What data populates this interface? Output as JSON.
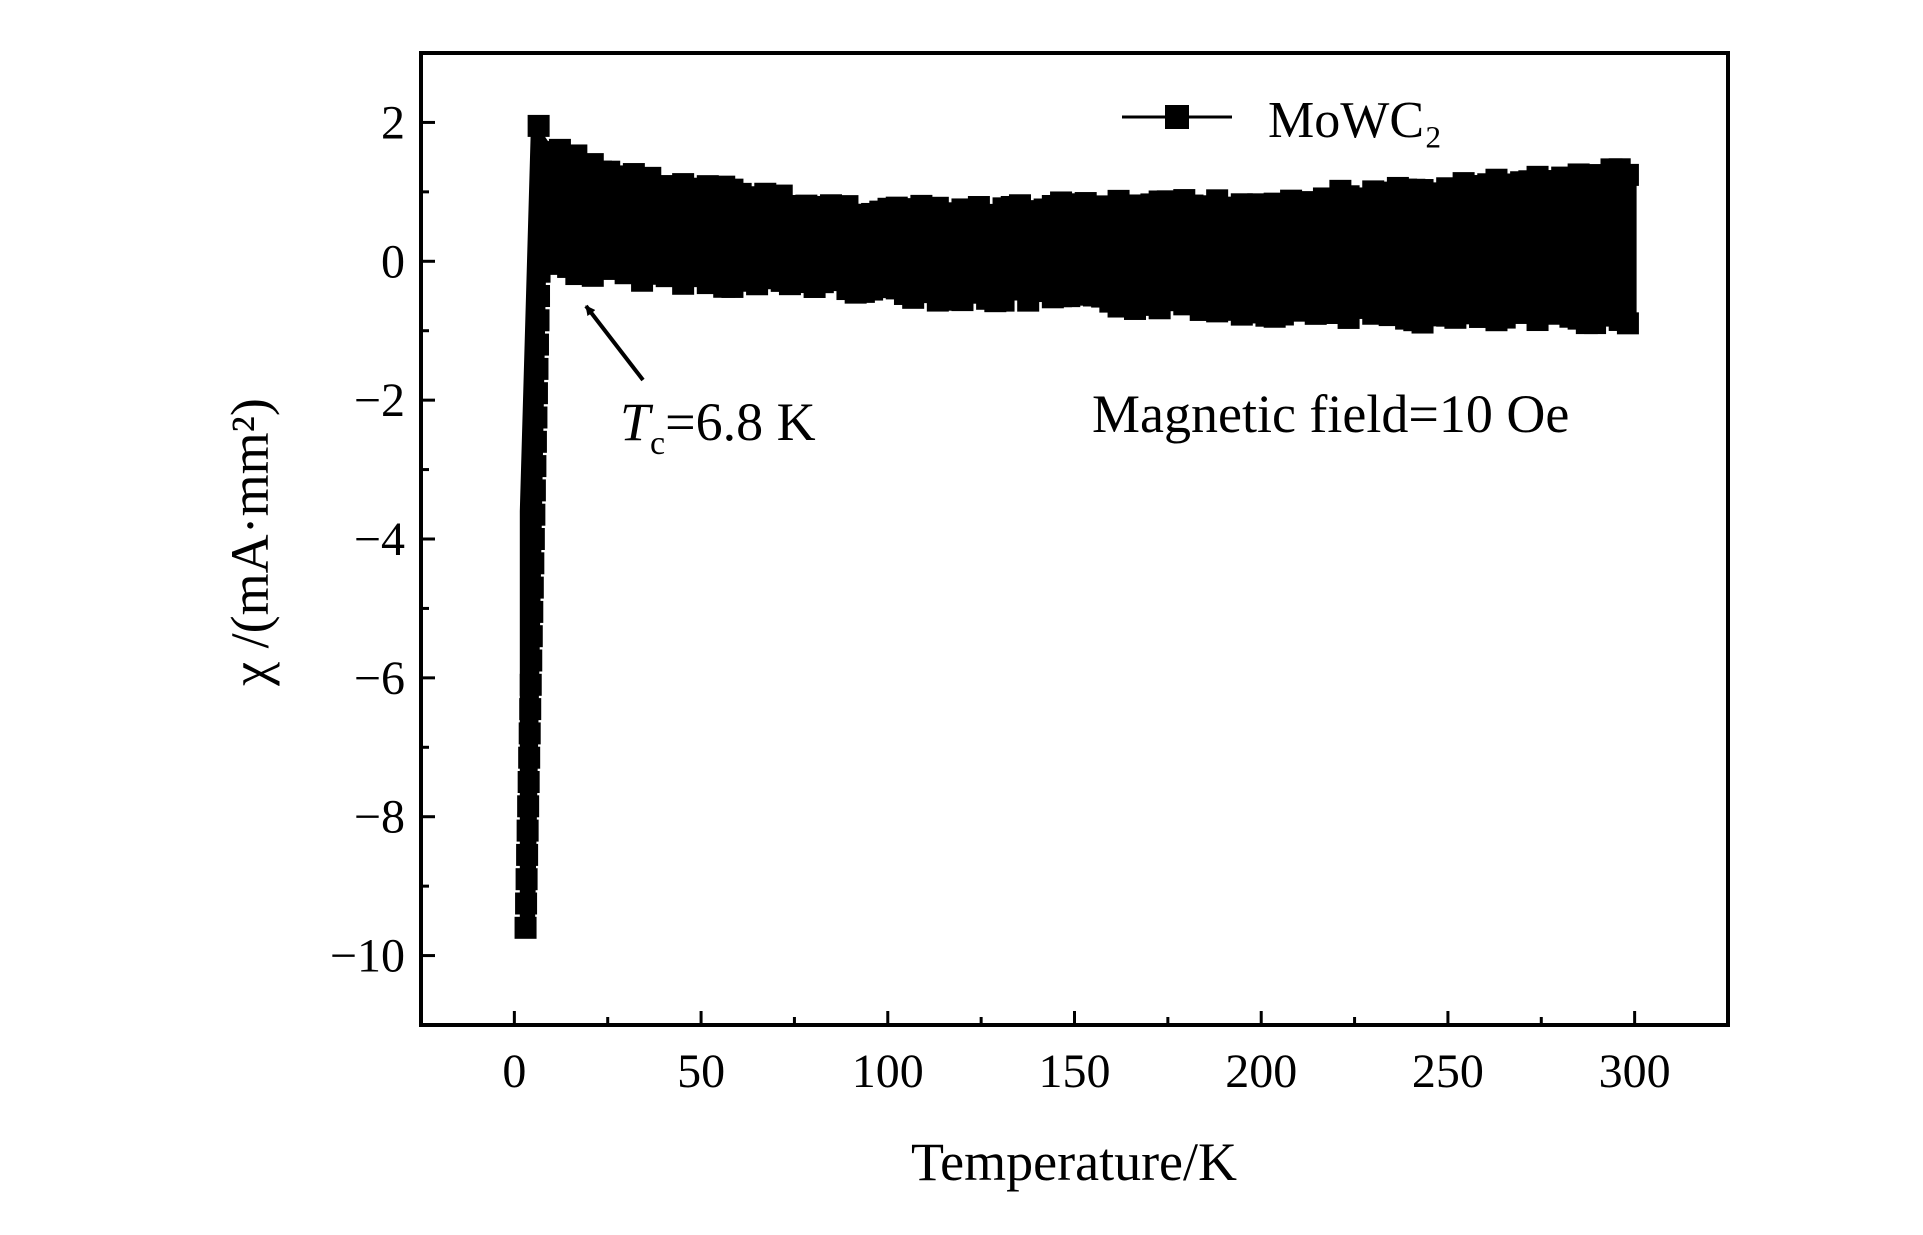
{
  "chart_data": {
    "type": "scatter",
    "xlabel": "Temperature/K",
    "ylabel": "χ /(mA·mm²)",
    "xlim": [
      -25,
      325
    ],
    "ylim": [
      -11,
      3
    ],
    "x_ticks": [
      0,
      50,
      100,
      150,
      200,
      250,
      300
    ],
    "y_ticks": [
      2,
      0,
      -2,
      -4,
      -6,
      -8,
      -10
    ],
    "x_tick_labels": [
      "0",
      "50",
      "100",
      "150",
      "200",
      "250",
      "300"
    ],
    "y_tick_labels": [
      "2",
      "0",
      "−2",
      "−4",
      "−6",
      "−8",
      "−10"
    ],
    "grid": false,
    "legend_position": "top-right",
    "series": [
      {
        "name": "MoWC₂",
        "marker": "square",
        "color": "#000000",
        "band_upper": [
          [
            2,
            -3.6
          ],
          [
            5,
            2.0
          ],
          [
            10,
            1.6
          ],
          [
            20,
            1.4
          ],
          [
            40,
            1.1
          ],
          [
            60,
            1.0
          ],
          [
            80,
            0.8
          ],
          [
            100,
            0.75
          ],
          [
            120,
            0.7
          ],
          [
            150,
            0.8
          ],
          [
            170,
            0.8
          ],
          [
            200,
            0.85
          ],
          [
            220,
            0.95
          ],
          [
            240,
            1.0
          ],
          [
            260,
            1.1
          ],
          [
            280,
            1.2
          ],
          [
            300,
            1.3
          ]
        ],
        "band_lower": [
          [
            300,
            -0.8
          ],
          [
            280,
            -0.8
          ],
          [
            260,
            -0.8
          ],
          [
            240,
            -0.8
          ],
          [
            220,
            -0.7
          ],
          [
            200,
            -0.7
          ],
          [
            180,
            -0.6
          ],
          [
            160,
            -0.6
          ],
          [
            140,
            -0.5
          ],
          [
            120,
            -0.5
          ],
          [
            100,
            -0.4
          ],
          [
            80,
            -0.3
          ],
          [
            60,
            -0.3
          ],
          [
            40,
            -0.2
          ],
          [
            20,
            -0.15
          ],
          [
            8,
            0.0
          ],
          [
            5,
            -9.6
          ],
          [
            2,
            -9.6
          ]
        ]
      }
    ],
    "annotations": [
      {
        "text": "T",
        "subscript": "c",
        "value_text": "=6.8 K",
        "points_to": [
          18,
          -0.55
        ]
      },
      {
        "text": "Magnetic field=10 Oe"
      }
    ]
  }
}
